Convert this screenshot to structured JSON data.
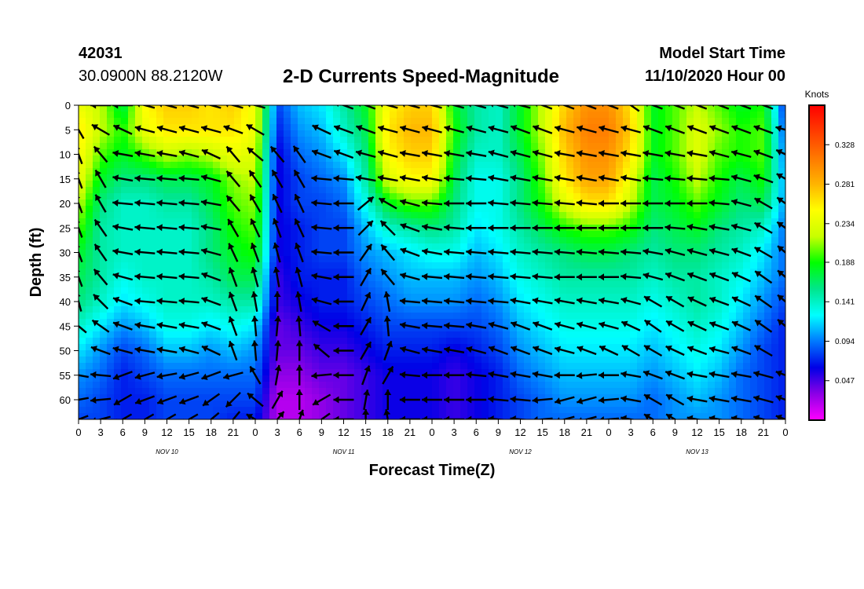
{
  "header": {
    "station_id": "42031",
    "coords": "30.0900N 88.2120W",
    "title": "2-D Currents Speed-Magnitude",
    "model_start_label": "Model Start Time",
    "model_start_value": "11/10/2020 Hour 00"
  },
  "chart_data": {
    "type": "heatmap",
    "title": "2-D Currents Speed-Magnitude",
    "xlabel": "Forecast Time(Z)",
    "ylabel": "Depth (ft)",
    "x_hours_range": [
      0,
      96
    ],
    "x_tick_hours": [
      0,
      3,
      6,
      9,
      12,
      15,
      18,
      21,
      24,
      27,
      30,
      33,
      36,
      39,
      42,
      45,
      48,
      51,
      54,
      57,
      60,
      63,
      66,
      69,
      72,
      75,
      78,
      81,
      84,
      87,
      90,
      93,
      96
    ],
    "x_tick_labels": [
      "0",
      "3",
      "6",
      "9",
      "12",
      "15",
      "18",
      "21",
      "0",
      "3",
      "6",
      "9",
      "12",
      "15",
      "18",
      "21",
      "0",
      "3",
      "6",
      "9",
      "12",
      "15",
      "18",
      "21",
      "0",
      "3",
      "6",
      "9",
      "12",
      "15",
      "18",
      "21",
      "0"
    ],
    "day_labels": [
      {
        "text": "NOV 10",
        "hour": 12
      },
      {
        "text": "NOV 11",
        "hour": 36
      },
      {
        "text": "NOV 12",
        "hour": 60
      },
      {
        "text": "NOV 13",
        "hour": 84
      }
    ],
    "y_range": [
      0,
      64
    ],
    "y_ticks": [
      0,
      5,
      10,
      15,
      20,
      25,
      30,
      35,
      40,
      45,
      50,
      55,
      60
    ],
    "colorbar": {
      "unit": "Knots",
      "range": [
        0.0,
        0.375
      ],
      "ticks": [
        0.047,
        0.094,
        0.141,
        0.188,
        0.234,
        0.281,
        0.328
      ],
      "colors": [
        "#ff00ff",
        "#8c00e6",
        "#0000e6",
        "#0078ff",
        "#00ffff",
        "#00e68c",
        "#00ff00",
        "#c8ff00",
        "#ffff00",
        "#ffb400",
        "#ff7800",
        "#ff3c00",
        "#ff0000"
      ]
    },
    "speed_grid": {
      "hours": [
        0,
        3,
        6,
        9,
        12,
        15,
        18,
        21,
        24,
        27,
        30,
        33,
        36,
        39,
        42,
        45,
        48,
        51,
        54,
        57,
        60,
        63,
        66,
        69,
        72,
        75,
        78,
        81,
        84,
        87,
        90,
        93,
        96
      ],
      "depths": [
        0,
        5,
        10,
        15,
        20,
        25,
        30,
        35,
        40,
        45,
        50,
        55,
        60,
        64
      ],
      "values": [
        [
          0.24,
          0.22,
          0.17,
          0.25,
          0.27,
          0.27,
          0.26,
          0.27,
          0.24,
          0.08,
          0.11,
          0.12,
          0.15,
          0.18,
          0.25,
          0.27,
          0.27,
          0.18,
          0.15,
          0.14,
          0.18,
          0.22,
          0.27,
          0.3,
          0.3,
          0.26,
          0.18,
          0.2,
          0.22,
          0.2,
          0.18,
          0.19,
          0.07
        ],
        [
          0.26,
          0.22,
          0.19,
          0.24,
          0.26,
          0.26,
          0.26,
          0.26,
          0.24,
          0.07,
          0.1,
          0.11,
          0.14,
          0.17,
          0.26,
          0.28,
          0.28,
          0.19,
          0.15,
          0.14,
          0.18,
          0.22,
          0.28,
          0.31,
          0.31,
          0.27,
          0.18,
          0.2,
          0.23,
          0.21,
          0.19,
          0.2,
          0.08
        ],
        [
          0.25,
          0.2,
          0.18,
          0.2,
          0.22,
          0.21,
          0.22,
          0.24,
          0.23,
          0.06,
          0.09,
          0.1,
          0.12,
          0.16,
          0.25,
          0.27,
          0.27,
          0.18,
          0.14,
          0.14,
          0.17,
          0.21,
          0.27,
          0.3,
          0.3,
          0.26,
          0.18,
          0.2,
          0.23,
          0.2,
          0.19,
          0.2,
          0.09
        ],
        [
          0.24,
          0.18,
          0.16,
          0.16,
          0.17,
          0.17,
          0.18,
          0.21,
          0.22,
          0.06,
          0.08,
          0.09,
          0.1,
          0.15,
          0.23,
          0.25,
          0.25,
          0.17,
          0.13,
          0.13,
          0.16,
          0.2,
          0.26,
          0.29,
          0.29,
          0.24,
          0.17,
          0.19,
          0.22,
          0.19,
          0.17,
          0.19,
          0.1
        ],
        [
          0.22,
          0.16,
          0.14,
          0.14,
          0.15,
          0.15,
          0.17,
          0.2,
          0.21,
          0.06,
          0.08,
          0.08,
          0.09,
          0.13,
          0.18,
          0.2,
          0.2,
          0.16,
          0.13,
          0.13,
          0.16,
          0.19,
          0.23,
          0.26,
          0.26,
          0.22,
          0.17,
          0.18,
          0.2,
          0.18,
          0.16,
          0.17,
          0.1
        ],
        [
          0.2,
          0.15,
          0.14,
          0.14,
          0.14,
          0.14,
          0.16,
          0.19,
          0.2,
          0.06,
          0.07,
          0.08,
          0.08,
          0.11,
          0.14,
          0.15,
          0.16,
          0.15,
          0.12,
          0.13,
          0.15,
          0.17,
          0.19,
          0.2,
          0.2,
          0.19,
          0.16,
          0.17,
          0.18,
          0.16,
          0.15,
          0.14,
          0.09
        ],
        [
          0.18,
          0.15,
          0.14,
          0.14,
          0.14,
          0.14,
          0.16,
          0.18,
          0.19,
          0.06,
          0.07,
          0.08,
          0.08,
          0.1,
          0.11,
          0.12,
          0.13,
          0.13,
          0.11,
          0.12,
          0.14,
          0.15,
          0.16,
          0.17,
          0.17,
          0.16,
          0.15,
          0.16,
          0.16,
          0.15,
          0.14,
          0.12,
          0.09
        ],
        [
          0.17,
          0.15,
          0.13,
          0.14,
          0.14,
          0.14,
          0.15,
          0.17,
          0.17,
          0.05,
          0.07,
          0.07,
          0.07,
          0.09,
          0.1,
          0.11,
          0.11,
          0.11,
          0.1,
          0.11,
          0.13,
          0.14,
          0.15,
          0.15,
          0.15,
          0.15,
          0.14,
          0.15,
          0.15,
          0.14,
          0.13,
          0.11,
          0.09
        ],
        [
          0.16,
          0.14,
          0.12,
          0.13,
          0.14,
          0.14,
          0.14,
          0.15,
          0.15,
          0.05,
          0.06,
          0.07,
          0.07,
          0.08,
          0.09,
          0.1,
          0.1,
          0.1,
          0.09,
          0.1,
          0.12,
          0.13,
          0.14,
          0.14,
          0.14,
          0.14,
          0.13,
          0.14,
          0.15,
          0.14,
          0.12,
          0.1,
          0.08
        ],
        [
          0.14,
          0.12,
          0.1,
          0.11,
          0.13,
          0.13,
          0.12,
          0.13,
          0.12,
          0.04,
          0.05,
          0.06,
          0.06,
          0.07,
          0.08,
          0.08,
          0.08,
          0.08,
          0.08,
          0.09,
          0.11,
          0.12,
          0.13,
          0.13,
          0.13,
          0.13,
          0.12,
          0.13,
          0.14,
          0.13,
          0.11,
          0.09,
          0.07
        ],
        [
          0.12,
          0.1,
          0.08,
          0.09,
          0.11,
          0.11,
          0.1,
          0.11,
          0.1,
          0.04,
          0.04,
          0.05,
          0.05,
          0.06,
          0.07,
          0.07,
          0.07,
          0.06,
          0.07,
          0.08,
          0.1,
          0.11,
          0.12,
          0.12,
          0.12,
          0.12,
          0.11,
          0.12,
          0.13,
          0.12,
          0.1,
          0.08,
          0.07
        ],
        [
          0.1,
          0.09,
          0.07,
          0.08,
          0.09,
          0.09,
          0.09,
          0.09,
          0.09,
          0.03,
          0.03,
          0.04,
          0.04,
          0.05,
          0.06,
          0.06,
          0.06,
          0.05,
          0.06,
          0.07,
          0.09,
          0.1,
          0.11,
          0.11,
          0.11,
          0.11,
          0.1,
          0.11,
          0.12,
          0.11,
          0.09,
          0.08,
          0.07
        ],
        [
          0.09,
          0.08,
          0.07,
          0.07,
          0.08,
          0.08,
          0.08,
          0.08,
          0.08,
          0.02,
          0.02,
          0.03,
          0.04,
          0.05,
          0.06,
          0.06,
          0.06,
          0.05,
          0.06,
          0.07,
          0.08,
          0.09,
          0.1,
          0.1,
          0.1,
          0.1,
          0.09,
          0.1,
          0.11,
          0.1,
          0.09,
          0.08,
          0.07
        ],
        [
          0.08,
          0.08,
          0.07,
          0.07,
          0.08,
          0.08,
          0.08,
          0.07,
          0.07,
          0.02,
          0.02,
          0.03,
          0.04,
          0.05,
          0.06,
          0.06,
          0.06,
          0.05,
          0.06,
          0.07,
          0.08,
          0.09,
          0.09,
          0.09,
          0.09,
          0.09,
          0.09,
          0.1,
          0.1,
          0.1,
          0.09,
          0.08,
          0.07
        ]
      ]
    },
    "vector_depths": [
      0,
      5,
      10,
      15,
      20,
      25,
      30,
      35,
      40,
      45,
      50,
      55,
      60,
      64
    ],
    "vector_hours": [
      0,
      3,
      6,
      9,
      12,
      15,
      18,
      21,
      24,
      27,
      30,
      33,
      36,
      39,
      42,
      45,
      48,
      51,
      54,
      57,
      60,
      63,
      66,
      69,
      72,
      75,
      78,
      81,
      84,
      87,
      90,
      93,
      96
    ],
    "vector_directions_deg": [
      [
        null,
        180,
        180,
        165,
        165,
        165,
        165,
        165,
        165,
        null,
        null,
        null,
        160,
        160,
        165,
        165,
        165,
        165,
        165,
        165,
        165,
        160,
        160,
        160,
        160,
        145,
        160,
        160,
        160,
        160,
        160,
        160,
        null
      ],
      [
        120,
        150,
        155,
        165,
        165,
        165,
        165,
        160,
        150,
        null,
        null,
        155,
        160,
        160,
        165,
        165,
        165,
        165,
        165,
        165,
        160,
        160,
        165,
        165,
        165,
        165,
        160,
        160,
        160,
        160,
        160,
        160,
        165
      ],
      [
        110,
        130,
        170,
        170,
        170,
        165,
        155,
        130,
        140,
        130,
        125,
        160,
        160,
        165,
        165,
        170,
        170,
        170,
        170,
        165,
        165,
        165,
        170,
        170,
        170,
        170,
        170,
        170,
        170,
        165,
        165,
        160,
        155
      ],
      [
        110,
        120,
        170,
        175,
        175,
        175,
        165,
        130,
        125,
        120,
        120,
        175,
        175,
        170,
        170,
        170,
        170,
        175,
        175,
        170,
        170,
        170,
        170,
        170,
        170,
        170,
        175,
        175,
        175,
        175,
        165,
        160,
        150
      ],
      [
        110,
        120,
        175,
        175,
        175,
        175,
        170,
        130,
        120,
        115,
        115,
        175,
        180,
        40,
        150,
        165,
        175,
        180,
        180,
        175,
        175,
        175,
        175,
        175,
        180,
        180,
        180,
        180,
        180,
        175,
        165,
        150,
        145
      ],
      [
        110,
        125,
        170,
        175,
        175,
        175,
        170,
        120,
        115,
        110,
        115,
        175,
        180,
        45,
        135,
        160,
        170,
        175,
        180,
        180,
        180,
        180,
        180,
        180,
        180,
        180,
        180,
        175,
        170,
        170,
        165,
        150,
        145
      ],
      [
        110,
        125,
        170,
        175,
        175,
        175,
        165,
        115,
        110,
        105,
        110,
        175,
        180,
        55,
        130,
        160,
        170,
        175,
        175,
        175,
        175,
        175,
        175,
        175,
        175,
        175,
        170,
        165,
        165,
        165,
        160,
        150,
        140
      ],
      [
        110,
        130,
        165,
        175,
        175,
        175,
        160,
        110,
        105,
        100,
        105,
        170,
        180,
        60,
        130,
        165,
        175,
        175,
        175,
        175,
        175,
        175,
        180,
        180,
        180,
        175,
        165,
        160,
        160,
        160,
        155,
        145,
        140
      ],
      [
        105,
        135,
        160,
        175,
        175,
        175,
        160,
        110,
        100,
        90,
        100,
        165,
        180,
        65,
        100,
        175,
        175,
        175,
        175,
        175,
        170,
        170,
        170,
        170,
        170,
        165,
        150,
        150,
        155,
        160,
        155,
        145,
        140
      ],
      [
        140,
        145,
        160,
        170,
        170,
        170,
        160,
        110,
        95,
        85,
        95,
        150,
        180,
        60,
        95,
        170,
        175,
        175,
        170,
        165,
        160,
        160,
        165,
        165,
        165,
        155,
        145,
        150,
        155,
        160,
        155,
        145,
        140
      ],
      [
        null,
        160,
        165,
        170,
        170,
        165,
        155,
        110,
        95,
        85,
        90,
        140,
        180,
        60,
        70,
        165,
        170,
        170,
        165,
        160,
        160,
        160,
        165,
        160,
        155,
        150,
        150,
        155,
        160,
        165,
        160,
        150,
        null
      ],
      [
        170,
        175,
        200,
        195,
        190,
        195,
        200,
        195,
        120,
        80,
        90,
        185,
        180,
        70,
        60,
        175,
        180,
        180,
        175,
        170,
        170,
        170,
        180,
        185,
        180,
        170,
        160,
        160,
        170,
        170,
        170,
        165,
        160
      ],
      [
        190,
        185,
        210,
        200,
        200,
        200,
        215,
        225,
        140,
        60,
        90,
        210,
        180,
        80,
        90,
        180,
        180,
        180,
        180,
        175,
        175,
        185,
        195,
        195,
        185,
        170,
        150,
        150,
        170,
        170,
        170,
        165,
        160
      ],
      [
        200,
        195,
        210,
        210,
        210,
        210,
        220,
        230,
        150,
        50,
        70,
        215,
        180,
        90,
        100,
        180,
        180,
        180,
        180,
        175,
        175,
        185,
        195,
        195,
        185,
        170,
        150,
        150,
        170,
        170,
        170,
        165,
        160
      ]
    ]
  }
}
